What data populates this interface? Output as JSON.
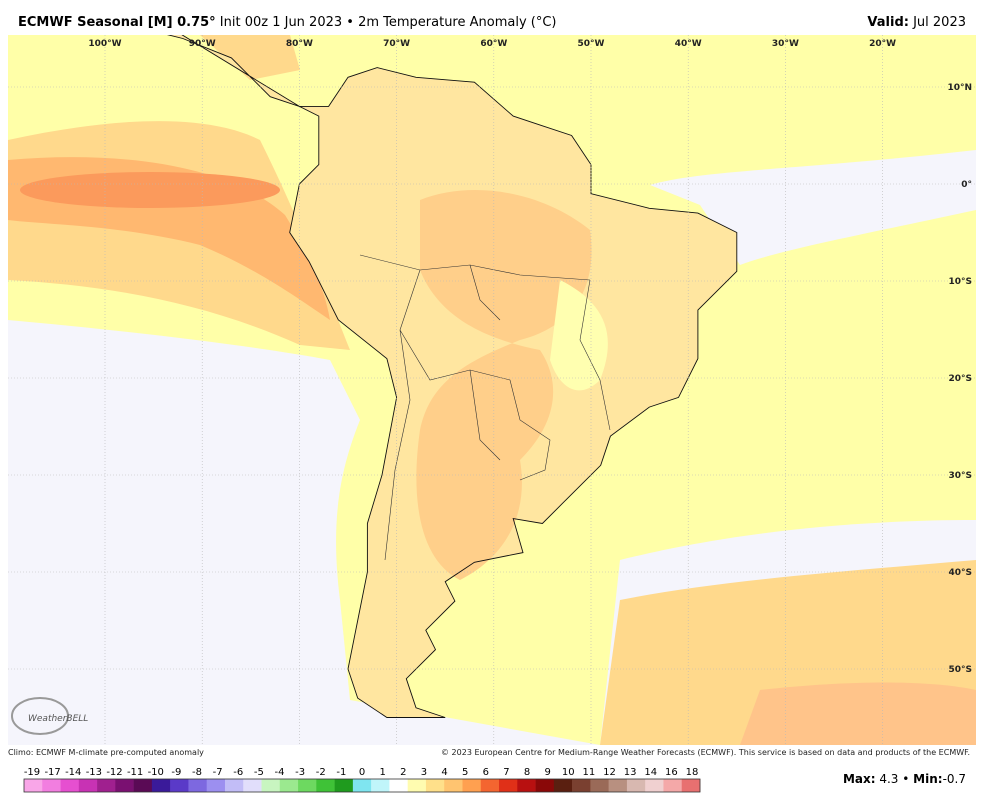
{
  "header": {
    "title_bold": "ECMWF Seasonal [M] 0.75°",
    "title_rest": "Init 00z 1 Jun 2023 • 2m Temperature Anomaly (°C)",
    "valid_label": "Valid:",
    "valid_value": "Jul 2023"
  },
  "map": {
    "lon_labels": [
      "100°W",
      "90°W",
      "80°W",
      "70°W",
      "60°W",
      "50°W",
      "40°W",
      "30°W",
      "20°W"
    ],
    "lat_labels": [
      "10°N",
      "0°",
      "10°S",
      "20°S",
      "30°S",
      "40°S",
      "50°S"
    ],
    "logo": "WeatherBELL"
  },
  "footer": {
    "left": "Climo: ECMWF M-climate pre-computed anomaly",
    "right": "© 2023 European Centre for Medium-Range Weather Forecasts (ECMWF). This service is based on data and products of the ECMWF."
  },
  "colorbar": {
    "labels": [
      -19,
      -17,
      -14,
      -13,
      -12,
      -11,
      -10,
      -9,
      -8,
      -7,
      -6,
      -5,
      -4,
      -3,
      -2,
      -1,
      0,
      1,
      2,
      3,
      4,
      5,
      6,
      7,
      8,
      9,
      10,
      11,
      12,
      13,
      14,
      16,
      18
    ],
    "colors": [
      "#f9a6e8",
      "#f27ee0",
      "#e64fd0",
      "#c832b4",
      "#a0208f",
      "#7a1071",
      "#5a0a55",
      "#3a1a9a",
      "#5a3ac8",
      "#7d68e0",
      "#9c8ff0",
      "#c2bdf7",
      "#e1defb",
      "#c8f5c0",
      "#9be98f",
      "#6dd960",
      "#3fc237",
      "#1f9b1e",
      "#7fe5f0",
      "#c0f5fa",
      "#ffffff",
      "#fffcb0",
      "#ffe08a",
      "#ffc470",
      "#ffa050",
      "#f46530",
      "#e03018",
      "#b81010",
      "#8a0808",
      "#5a1f10",
      "#7a4030",
      "#9a6a58",
      "#b89080",
      "#d8b8b0",
      "#f0d0d0",
      "#f4a8a8",
      "#e87070"
    ]
  },
  "stats": {
    "max_label": "Max:",
    "max": 4.3,
    "separator": "•",
    "min_label": "Min:",
    "min": -0.7
  }
}
